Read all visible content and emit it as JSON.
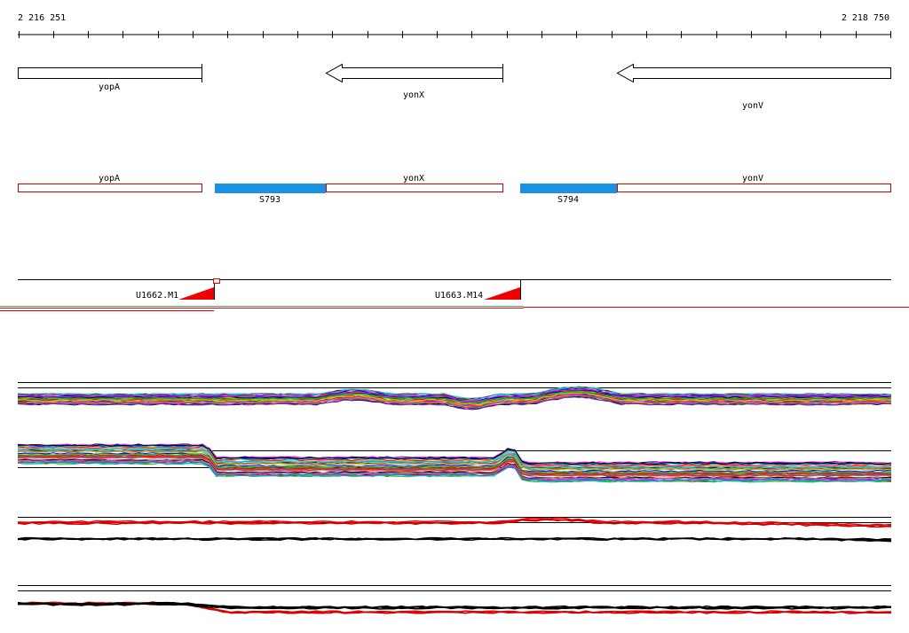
{
  "coordinates": {
    "start": "2 216 251",
    "end": "2 218 750"
  },
  "genes": [
    {
      "name": "yopA",
      "strand": "+"
    },
    {
      "name": "yonX",
      "strand": "-"
    },
    {
      "name": "yonV",
      "strand": "-"
    }
  ],
  "segments": [
    {
      "name": "S793",
      "color": "#1e90e0"
    },
    {
      "name": "S794",
      "color": "#1e90e0"
    }
  ],
  "upshifts": [
    {
      "name": "U1662.M1"
    },
    {
      "name": "U1663.M14"
    }
  ],
  "colors": {
    "gene_outline": "#000000",
    "annotation_outline": "#cc0000",
    "segment_fill": "#1e90e0",
    "upshift_marker": "#ee0000"
  }
}
